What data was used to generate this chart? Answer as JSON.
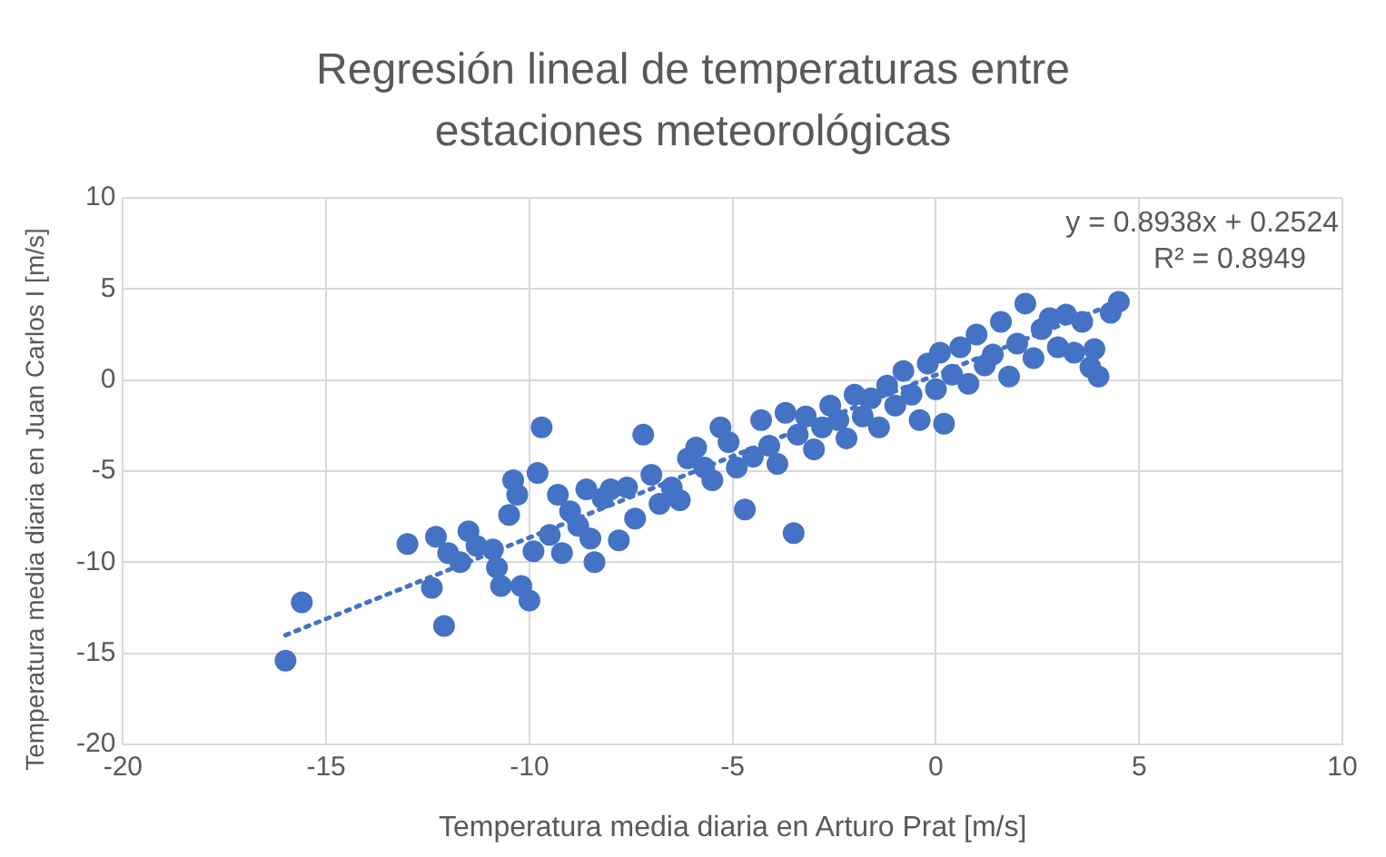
{
  "chart_data": {
    "type": "scatter",
    "title": "Regresión lineal de temperaturas entre estaciones meteorológicas",
    "xlabel": "Temperatura media diaria en Arturo Prat [m/s]",
    "ylabel": "Temperatura media diaria en Juan Carlos I [m/s]",
    "annotations": [
      "y = 0.8938x + 0.2524",
      "R² = 0.8949"
    ],
    "xlim": [
      -20,
      10
    ],
    "xticks": [
      -20,
      -15,
      -10,
      -5,
      0,
      5,
      10
    ],
    "ylim": [
      -20,
      10
    ],
    "yticks": [
      -20,
      -15,
      -10,
      -5,
      0,
      5,
      10
    ],
    "grid": true,
    "marker": "circle",
    "series": [
      {
        "color": "#4472c4",
        "x": [
          -16.0,
          -15.6,
          -13.0,
          -12.3,
          -12.4,
          -12.1,
          -12.0,
          -11.7,
          -11.5,
          -11.3,
          -10.9,
          -10.8,
          -10.7,
          -10.5,
          -10.4,
          -10.3,
          -10.2,
          -10.0,
          -9.9,
          -9.8,
          -9.7,
          -9.5,
          -9.3,
          -9.2,
          -9.0,
          -8.8,
          -8.6,
          -8.5,
          -8.4,
          -8.2,
          -8.0,
          -7.8,
          -7.6,
          -7.4,
          -7.2,
          -7.0,
          -6.8,
          -6.5,
          -6.3,
          -6.1,
          -5.9,
          -5.7,
          -5.5,
          -5.3,
          -5.1,
          -4.9,
          -4.7,
          -4.5,
          -4.3,
          -4.1,
          -3.9,
          -3.7,
          -3.5,
          -3.4,
          -3.2,
          -3.0,
          -2.8,
          -2.6,
          -2.4,
          -2.2,
          -2.0,
          -1.8,
          -1.6,
          -1.4,
          -1.2,
          -1.0,
          -0.8,
          -0.6,
          -0.4,
          -0.2,
          0.0,
          0.1,
          0.2,
          0.4,
          0.6,
          0.8,
          1.0,
          1.2,
          1.4,
          1.6,
          1.8,
          2.0,
          2.2,
          2.4,
          2.6,
          2.8,
          3.0,
          3.2,
          3.4,
          3.6,
          3.8,
          3.9,
          4.0,
          4.3,
          4.5
        ],
        "values": [
          -15.4,
          -12.2,
          -9.0,
          -8.6,
          -11.4,
          -13.5,
          -9.5,
          -10.0,
          -8.3,
          -9.1,
          -9.3,
          -10.3,
          -11.3,
          -7.4,
          -5.5,
          -6.3,
          -11.3,
          -12.1,
          -9.4,
          -5.1,
          -2.6,
          -8.5,
          -6.3,
          -9.5,
          -7.2,
          -8.0,
          -6.0,
          -8.7,
          -10.0,
          -6.5,
          -6.0,
          -8.8,
          -5.9,
          -7.6,
          -3.0,
          -5.2,
          -6.8,
          -5.9,
          -6.6,
          -4.3,
          -3.7,
          -4.8,
          -5.5,
          -2.6,
          -3.4,
          -4.8,
          -7.1,
          -4.2,
          -2.2,
          -3.6,
          -4.6,
          -1.8,
          -8.4,
          -3.0,
          -2.0,
          -3.8,
          -2.6,
          -1.4,
          -2.2,
          -3.2,
          -0.8,
          -2.0,
          -1.0,
          -2.6,
          -0.3,
          -1.4,
          0.5,
          -0.8,
          -2.2,
          0.9,
          -0.5,
          1.5,
          -2.4,
          0.3,
          1.8,
          -0.2,
          2.5,
          0.8,
          1.4,
          3.2,
          0.2,
          2.0,
          4.2,
          1.2,
          2.8,
          3.4,
          1.8,
          3.6,
          1.5,
          3.2,
          0.7,
          1.7,
          0.2,
          3.7,
          4.3
        ]
      },
      {
        "type": "line",
        "color": "#4472c4",
        "line_style": "dotted",
        "marker": "none",
        "x": [
          -16.0,
          4.5
        ],
        "values": [
          -14.0,
          4.3
        ]
      }
    ]
  }
}
